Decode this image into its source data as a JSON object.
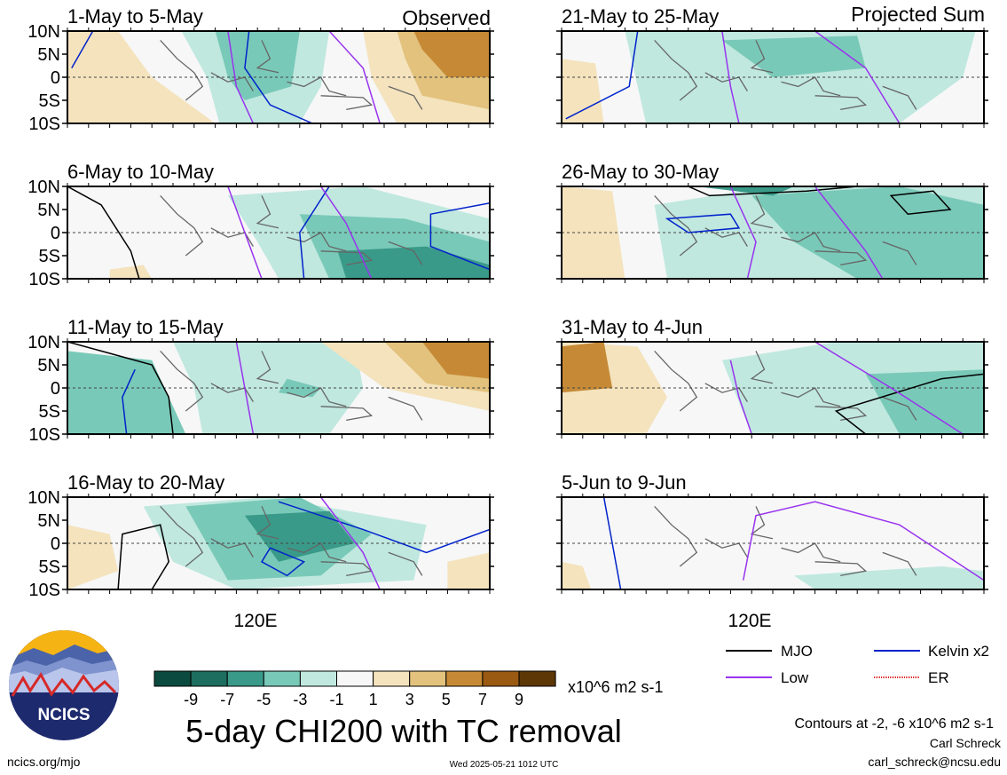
{
  "header": {
    "observed_label": "Observed",
    "projected_label": "Projected Sum"
  },
  "axes": {
    "lat_ticks": [
      "10N",
      "5N",
      "0",
      "5S",
      "10S"
    ],
    "lon_label": "120E"
  },
  "panels": [
    {
      "title": "1-May to 5-May",
      "column": "observed",
      "row": 0
    },
    {
      "title": "6-May to 10-May",
      "column": "observed",
      "row": 1
    },
    {
      "title": "11-May to 15-May",
      "column": "observed",
      "row": 2
    },
    {
      "title": "16-May to 20-May",
      "column": "observed",
      "row": 3
    },
    {
      "title": "21-May to 25-May",
      "column": "projected",
      "row": 0
    },
    {
      "title": "26-May to 30-May",
      "column": "projected",
      "row": 1
    },
    {
      "title": "31-May to 4-Jun",
      "column": "projected",
      "row": 2
    },
    {
      "title": "5-Jun to 9-Jun",
      "column": "projected",
      "row": 3
    }
  ],
  "colorbar": {
    "labels": [
      "-9",
      "-7",
      "-5",
      "-3",
      "-1",
      "1",
      "3",
      "5",
      "7",
      "9"
    ],
    "colors": [
      "#0b4a3e",
      "#1d6e5f",
      "#3a9a89",
      "#79c9b8",
      "#c0e8df",
      "#f7f7f7",
      "#f4e3bd",
      "#e2c27d",
      "#c68a36",
      "#9a5a12",
      "#5e3706"
    ],
    "units": "x10^6 m2 s-1"
  },
  "legend": {
    "items": [
      {
        "label": "MJO",
        "color": "#000000"
      },
      {
        "label": "Kelvin x2",
        "color": "#0022cc"
      },
      {
        "label": "Low",
        "color": "#9933ee"
      },
      {
        "label": "ER",
        "color": "#dd2222"
      }
    ],
    "contours_note": "Contours at -2, -6 x10^6 m2 s-1"
  },
  "footer": {
    "main_title": "5-day CHI200 with TC removal",
    "url": "ncics.org/mjo",
    "timestamp": "Wed 2025-05-21 1012 UTC",
    "author": "Carl Schreck",
    "email": "carl_schreck@ncsu.edu",
    "logo_text": "NCICS"
  },
  "chart_data": {
    "type": "heatmap",
    "variable": "5-day CHI200 with TC removal",
    "units": "x10^6 m2 s-1",
    "lat_range": [
      "10S",
      "10N"
    ],
    "contour_levels": [
      -2,
      -6
    ],
    "color_levels": [
      -9,
      -7,
      -5,
      -3,
      -1,
      1,
      3,
      5,
      7,
      9
    ],
    "series": [
      {
        "name": "MJO",
        "color": "#000000"
      },
      {
        "name": "Kelvin x2",
        "color": "#0022cc"
      },
      {
        "name": "Low",
        "color": "#9933ee"
      },
      {
        "name": "ER",
        "color": "#dd2222"
      }
    ]
  }
}
